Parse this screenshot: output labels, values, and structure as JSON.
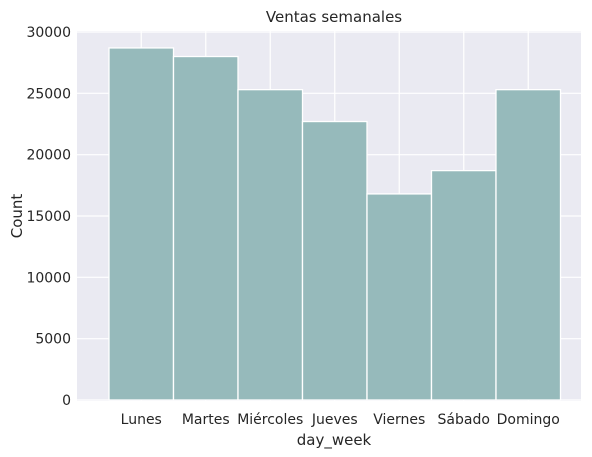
{
  "chart_data": {
    "type": "bar",
    "title": "Ventas semanales",
    "xlabel": "day_week",
    "ylabel": "Count",
    "categories": [
      "Lunes",
      "Martes",
      "Miércoles",
      "Jueves",
      "Viernes",
      "Sábado",
      "Domingo"
    ],
    "values": [
      28700,
      28000,
      25300,
      22700,
      16800,
      18700,
      25300
    ],
    "ylim": [
      0,
      30000
    ],
    "yticks": [
      "0",
      "5000",
      "10000",
      "15000",
      "20000",
      "25000",
      "30000"
    ],
    "ytick_values": [
      0,
      5000,
      10000,
      15000,
      20000,
      25000,
      30000
    ],
    "grid": true,
    "colors": {
      "plot_bg": "#eaeaf2",
      "grid": "#ffffff",
      "bar_fill": "#96babb",
      "bar_edge": "#ffffff"
    }
  }
}
